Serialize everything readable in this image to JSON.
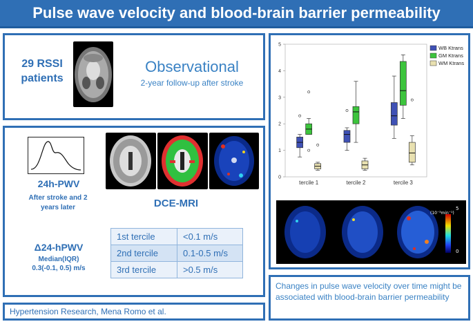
{
  "header": {
    "title": "Pulse wave velocity and blood-brain barrier permeability"
  },
  "study": {
    "count_label": "29 RSSI patients",
    "type": "Observational",
    "followup": "2-year follow-up after stroke"
  },
  "methods": {
    "pwv_title": "24h-PWV",
    "pwv_desc": "After stroke and 2 years later",
    "dce_label": "DCE-MRI",
    "delta_title": "Δ24-hPWV",
    "delta_sub1": "Median(IQR)",
    "delta_sub2": "0.3(-0.1, 0.5) m/s",
    "terciles": [
      {
        "name": "1st tercile",
        "range": "<0.1 m/s"
      },
      {
        "name": "2nd tercile",
        "range": "0.1-0.5 m/s"
      },
      {
        "name": "3rd tercile",
        "range": ">0.5 m/s"
      }
    ]
  },
  "chart_data": {
    "type": "box",
    "categories": [
      "tercile 1",
      "tercile 2",
      "tercile 3"
    ],
    "ylim": [
      0,
      5
    ],
    "yticks": [
      "0",
      "1",
      "2",
      "3",
      "4",
      "5"
    ],
    "series": [
      {
        "name": "WB Ktrans",
        "color": "#3f51b5",
        "boxes": [
          {
            "min": 0.75,
            "q1": 1.1,
            "median": 1.3,
            "q3": 1.5,
            "max": 1.6,
            "outliers": [
              2.3
            ]
          },
          {
            "min": 1.0,
            "q1": 1.3,
            "median": 1.6,
            "q3": 1.75,
            "max": 1.85,
            "outliers": [
              2.5
            ]
          },
          {
            "min": 1.45,
            "q1": 1.95,
            "median": 2.3,
            "q3": 2.8,
            "max": 3.8,
            "outliers": []
          }
        ]
      },
      {
        "name": "GM Ktrans",
        "color": "#3cc43c",
        "boxes": [
          {
            "min": 1.6,
            "q1": 1.6,
            "median": 1.8,
            "q3": 2.0,
            "max": 2.2,
            "outliers": [
              1.0,
              3.2
            ]
          },
          {
            "min": 1.3,
            "q1": 2.0,
            "median": 2.45,
            "q3": 2.65,
            "max": 3.6,
            "outliers": []
          },
          {
            "min": 2.2,
            "q1": 2.7,
            "median": 3.25,
            "q3": 4.35,
            "max": 4.6,
            "outliers": []
          }
        ]
      },
      {
        "name": "WM Ktrans",
        "color": "#e8e0b0",
        "boxes": [
          {
            "min": 0.25,
            "q1": 0.3,
            "median": 0.4,
            "q3": 0.5,
            "max": 0.55,
            "outliers": [
              1.2
            ]
          },
          {
            "min": 0.25,
            "q1": 0.3,
            "median": 0.45,
            "q3": 0.6,
            "max": 0.7,
            "outliers": []
          },
          {
            "min": 0.45,
            "q1": 0.55,
            "median": 0.9,
            "q3": 1.3,
            "max": 1.55,
            "outliers": [
              2.9
            ]
          }
        ]
      }
    ]
  },
  "colorbar": {
    "top": "5",
    "unit": "(10⁻³min⁻¹)",
    "bottom": "0"
  },
  "conclusion": "Changes in pulse wave velocity over time might be associated with blood-brain barrier permeability",
  "footer": {
    "citation": "Hypertension Research, Mena Romo et al."
  },
  "colors": {
    "accent": "#2f6fb5",
    "header_bg": "#2f6fb5"
  }
}
